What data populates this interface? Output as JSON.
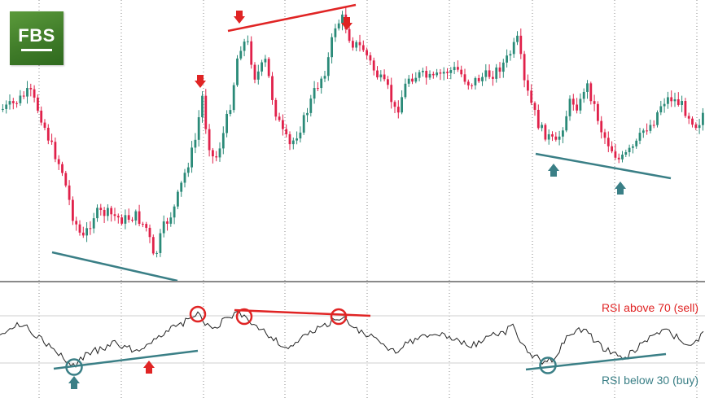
{
  "logo": {
    "text": "FBS"
  },
  "annotations": {
    "rsi_sell": "RSI above 70 (sell)",
    "rsi_buy": "RSI below 30 (buy)"
  },
  "colors": {
    "bull": "#2a8a78",
    "bear": "#e0214a",
    "rsi_line": "#222222",
    "sell_marks": "#e02424",
    "buy_marks": "#3a7f86",
    "grid": "#888888",
    "divider": "#888888"
  },
  "chart_data": [
    {
      "type": "candlestick",
      "panel": "price",
      "grid": true,
      "marks": {
        "sell_arrows_count": 3,
        "buy_arrows_count": 2,
        "red_trendlines_count": 1,
        "teal_trendlines_count": 2
      }
    },
    {
      "type": "line",
      "panel": "RSI",
      "levels": [
        70,
        30
      ],
      "grid": true,
      "marks": {
        "overbought_circles_count": 3,
        "oversold_circles_count": 2,
        "red_trendlines_count": 1,
        "teal_trendlines_count": 2,
        "buy_arrows_count": 1,
        "sell_arrows_count": 1
      }
    }
  ]
}
